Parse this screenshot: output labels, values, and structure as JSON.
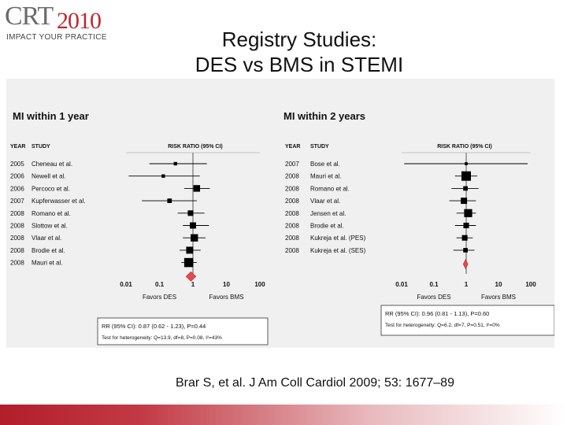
{
  "logo": {
    "crt": "CRT",
    "year": "2010",
    "tagline": "IMPACT YOUR PRACTICE"
  },
  "slide": {
    "title_line1": "Registry Studies:",
    "title_line2": "DES vs BMS in STEMI"
  },
  "citation": "Brar S, et al. J Am Coll Cardiol 2009; 53: 1677–89",
  "colors": {
    "accent": "#c1272d",
    "marker": "#000000",
    "diamond": "#e8474c",
    "panel": "#f0f0f0"
  },
  "chart_data": [
    {
      "type": "forest",
      "title": "MI within 1 year",
      "col_year": "YEAR",
      "col_study": "STUDY",
      "col_rr": "RISK RATIO (95% CI)",
      "scale": "log",
      "ticks": [
        "0.01",
        "0.1",
        "1",
        "10",
        "100"
      ],
      "xlim": [
        0.01,
        100
      ],
      "favors_left": "Favors DES",
      "favors_right": "Favors BMS",
      "studies": [
        {
          "year": "2005",
          "study": "Cheneau et al.",
          "rr": 0.3,
          "lo": 0.05,
          "hi": 2.6,
          "weight": 0.15
        },
        {
          "year": "2006",
          "study": "Newell et al.",
          "rr": 0.13,
          "lo": 0.012,
          "hi": 1.6,
          "weight": 0.15
        },
        {
          "year": "2006",
          "study": "Percoco et al.",
          "rr": 1.3,
          "lo": 0.55,
          "hi": 3.2,
          "weight": 0.6
        },
        {
          "year": "2007",
          "study": "Kupferwasser et al.",
          "rr": 0.2,
          "lo": 0.03,
          "hi": 1.3,
          "weight": 0.3
        },
        {
          "year": "2008",
          "study": "Romano et al.",
          "rr": 0.85,
          "lo": 0.35,
          "hi": 2.2,
          "weight": 0.45
        },
        {
          "year": "2008",
          "study": "Slottow et al.",
          "rr": 1.0,
          "lo": 0.5,
          "hi": 3.0,
          "weight": 0.55
        },
        {
          "year": "2008",
          "study": "Vlaar et al.",
          "rr": 1.1,
          "lo": 0.5,
          "hi": 2.4,
          "weight": 0.7
        },
        {
          "year": "2008",
          "study": "Brodie et al.",
          "rr": 0.8,
          "lo": 0.4,
          "hi": 1.7,
          "weight": 0.65
        },
        {
          "year": "2008",
          "study": "Mauri et al.",
          "rr": 0.75,
          "lo": 0.45,
          "hi": 1.3,
          "weight": 0.95
        }
      ],
      "pooled": {
        "rr": 0.87,
        "lo": 0.62,
        "hi": 1.23
      },
      "summary_line1": "RR (95% CI):  0.87 (0.62 - 1.23), P=0.44",
      "summary_line2": "Test for heterogeneity: Q=13.9, df=8, P=0.08, I²=43%"
    },
    {
      "type": "forest",
      "title": "MI within 2 years",
      "col_year": "YEAR",
      "col_study": "STUDY",
      "col_rr": "RISK RATIO (95% CI)",
      "scale": "log",
      "ticks": [
        "0.01",
        "0.1",
        "1",
        "10",
        "100"
      ],
      "xlim": [
        0.01,
        100
      ],
      "favors_left": "Favors DES",
      "favors_right": "Favors BMS",
      "studies": [
        {
          "year": "2007",
          "study": "Bose et al.",
          "rr": 1.0,
          "lo": 0.012,
          "hi": 80,
          "weight": 0.08
        },
        {
          "year": "2008",
          "study": "Mauri et al.",
          "rr": 1.0,
          "lo": 0.45,
          "hi": 2.2,
          "weight": 1.0
        },
        {
          "year": "2008",
          "study": "Romano et al.",
          "rr": 0.95,
          "lo": 0.35,
          "hi": 2.4,
          "weight": 0.3
        },
        {
          "year": "2008",
          "study": "Vlaar et al.",
          "rr": 0.85,
          "lo": 0.3,
          "hi": 2.0,
          "weight": 0.55
        },
        {
          "year": "2008",
          "study": "Jensen et al.",
          "rr": 1.15,
          "lo": 0.5,
          "hi": 2.0,
          "weight": 0.8
        },
        {
          "year": "2008",
          "study": "Brodie et al.",
          "rr": 1.0,
          "lo": 0.45,
          "hi": 2.0,
          "weight": 0.45
        },
        {
          "year": "2008",
          "study": "Kukreja et al. (PES)",
          "rr": 0.9,
          "lo": 0.5,
          "hi": 1.6,
          "weight": 0.45
        },
        {
          "year": "2008",
          "study": "Kukreja et al. (SES)",
          "rr": 0.95,
          "lo": 0.4,
          "hi": 1.8,
          "weight": 0.3
        }
      ],
      "pooled": {
        "rr": 0.96,
        "lo": 0.81,
        "hi": 1.13
      },
      "summary_line1": "RR (95% CI):  0.96 (0.81 - 1.13), P=0.60",
      "summary_line2": "Test for heterogeneity: Q=6.2, df=7, P=0.51, I²=0%"
    }
  ]
}
